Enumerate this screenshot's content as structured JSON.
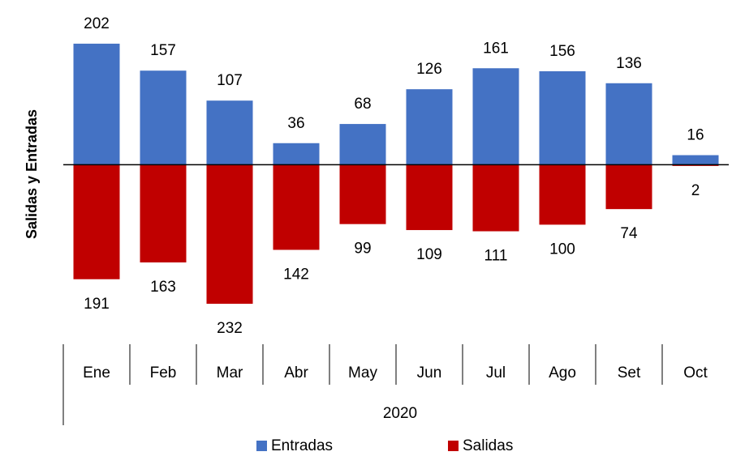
{
  "chart_data": {
    "type": "bar",
    "y_label": "Salidas y Entradas",
    "categories": [
      "Ene",
      "Feb",
      "Mar",
      "Abr",
      "May",
      "Jun",
      "Jul",
      "Ago",
      "Set",
      "Oct"
    ],
    "group_label": "2020",
    "series": [
      {
        "name": "Entradas",
        "color": "#4472c4",
        "values": [
          202,
          157,
          107,
          36,
          68,
          126,
          161,
          156,
          136,
          16
        ]
      },
      {
        "name": "Salidas",
        "color": "#c00000",
        "values": [
          -191,
          -163,
          -232,
          -142,
          -99,
          -109,
          -111,
          -100,
          -74,
          -2
        ],
        "value_labels": [
          "191",
          "163",
          "232",
          "142",
          "99",
          "109",
          "111",
          "100",
          "74",
          "2"
        ]
      }
    ],
    "ylim": [
      -240,
      210
    ]
  }
}
